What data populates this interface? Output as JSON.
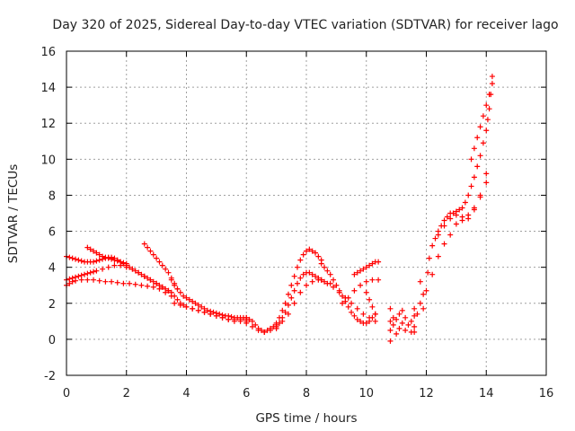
{
  "chart_data": {
    "type": "scatter",
    "title": "Day 320 of 2025, Sidereal Day-to-day VTEC variation (SDTVAR) for receiver lago",
    "xlabel": "GPS time / hours",
    "ylabel": "SDTVAR / TECUs",
    "xlim": [
      0,
      16
    ],
    "ylim": [
      -2,
      16
    ],
    "xticks": [
      0,
      2,
      4,
      6,
      8,
      10,
      12,
      14,
      16
    ],
    "yticks": [
      -2,
      0,
      2,
      4,
      6,
      8,
      10,
      12,
      14,
      16
    ],
    "grid": true,
    "marker": "+",
    "color": "#ff0000",
    "series": [
      {
        "name": "SDTVAR",
        "x": [
          0.0,
          0.1,
          0.2,
          0.3,
          0.4,
          0.5,
          0.6,
          0.7,
          0.8,
          0.9,
          1.0,
          1.1,
          1.2,
          1.3,
          1.4,
          1.5,
          1.6,
          1.7,
          1.8,
          1.9,
          2.0,
          2.1,
          2.2,
          2.3,
          2.4,
          2.5,
          2.6,
          2.7,
          2.8,
          2.9,
          3.0,
          3.1,
          3.2,
          3.3,
          3.4,
          0.0,
          0.1,
          0.2,
          0.3,
          0.4,
          0.5,
          0.6,
          0.7,
          0.8,
          0.9,
          1.0,
          1.2,
          1.4,
          1.6,
          1.8,
          2.0,
          2.2,
          2.4,
          2.6,
          2.8,
          3.0,
          3.2,
          3.4,
          0.0,
          0.1,
          0.2,
          0.3,
          0.5,
          0.7,
          0.9,
          1.1,
          1.3,
          1.5,
          1.7,
          1.9,
          2.1,
          2.3,
          2.5,
          2.7,
          2.9,
          3.1,
          3.3,
          3.5,
          0.7,
          0.8,
          0.9,
          1.0,
          1.1,
          1.2,
          1.3,
          1.4,
          1.5,
          1.6,
          1.7,
          1.8,
          1.9,
          2.0,
          2.6,
          2.7,
          2.8,
          2.9,
          3.0,
          3.1,
          3.2,
          3.3,
          3.4,
          3.5,
          3.6,
          3.7,
          3.5,
          3.6,
          3.7,
          3.8,
          3.9,
          4.0,
          4.1,
          4.2,
          4.3,
          4.4,
          4.5,
          4.6,
          4.7,
          4.8,
          4.9,
          5.0,
          5.1,
          5.2,
          5.3,
          5.4,
          5.5,
          5.6,
          5.7,
          5.8,
          5.9,
          6.0,
          3.5,
          3.6,
          3.7,
          3.8,
          3.9,
          4.0,
          4.2,
          4.4,
          4.6,
          4.8,
          5.0,
          5.2,
          5.4,
          5.6,
          5.8,
          6.0,
          3.6,
          3.8,
          4.0,
          4.2,
          4.4,
          4.6,
          4.8,
          5.0,
          5.2,
          5.4,
          5.6,
          5.8,
          6.0,
          6.0,
          6.1,
          6.2,
          6.3,
          6.4,
          6.5,
          6.6,
          6.7,
          6.8,
          6.9,
          7.0,
          6.0,
          6.2,
          6.4,
          6.6,
          6.8,
          7.0,
          7.0,
          7.1,
          7.2,
          7.3,
          7.4,
          7.5,
          7.6,
          7.7,
          7.8,
          7.9,
          8.0,
          8.1,
          8.2,
          8.3,
          8.4,
          8.5,
          7.0,
          7.1,
          7.2,
          7.3,
          7.4,
          7.5,
          7.6,
          7.7,
          7.8,
          7.9,
          8.0,
          8.1,
          8.2,
          8.3,
          8.4,
          8.5,
          7.2,
          7.4,
          7.6,
          7.8,
          8.0,
          8.2,
          8.4,
          8.6,
          8.8,
          8.5,
          8.6,
          8.7,
          8.8,
          8.9,
          9.0,
          9.1,
          9.2,
          9.3,
          9.4,
          9.5,
          9.6,
          9.7,
          9.8,
          9.9,
          10.0,
          10.1,
          10.2,
          10.3,
          8.5,
          8.7,
          8.9,
          9.1,
          9.3,
          9.5,
          9.7,
          9.9,
          10.1,
          10.3,
          9.2,
          9.4,
          9.6,
          9.8,
          10.0,
          10.2,
          10.4,
          9.6,
          9.7,
          9.8,
          9.9,
          10.0,
          10.1,
          10.2,
          10.3,
          10.4,
          10.0,
          10.1,
          10.2,
          10.3,
          10.8,
          10.8,
          10.8,
          10.8,
          10.9,
          10.9,
          11.0,
          11.0,
          11.1,
          11.1,
          11.2,
          11.2,
          11.3,
          11.3,
          11.4,
          11.5,
          11.5,
          11.6,
          11.6,
          11.6,
          11.6,
          11.7,
          11.8,
          11.8,
          11.9,
          11.9,
          12.0,
          12.05,
          12.1,
          12.2,
          12.3,
          12.4,
          12.5,
          12.6,
          12.7,
          12.8,
          12.9,
          13.0,
          13.1,
          13.2,
          13.3,
          13.4,
          13.5,
          13.6,
          13.7,
          13.8,
          13.9,
          14.0,
          14.05,
          14.1,
          14.15,
          14.2,
          12.2,
          12.4,
          12.6,
          12.8,
          13.0,
          13.2,
          13.4,
          13.6,
          13.8,
          14.0,
          12.4,
          12.6,
          12.8,
          13.0,
          13.2,
          13.4,
          13.6,
          13.8,
          14.0,
          13.5,
          13.6,
          13.7,
          13.8,
          13.9,
          14.0,
          14.1,
          14.2
        ],
        "y": [
          4.6,
          4.55,
          4.5,
          4.45,
          4.4,
          4.35,
          4.3,
          4.3,
          4.3,
          4.3,
          4.35,
          4.4,
          4.45,
          4.5,
          4.55,
          4.55,
          4.5,
          4.4,
          4.3,
          4.2,
          4.1,
          4.0,
          3.9,
          3.8,
          3.7,
          3.6,
          3.5,
          3.4,
          3.3,
          3.2,
          3.1,
          3.0,
          2.9,
          2.8,
          2.7,
          3.3,
          3.35,
          3.4,
          3.45,
          3.5,
          3.55,
          3.6,
          3.65,
          3.7,
          3.75,
          3.8,
          3.9,
          4.0,
          4.1,
          4.1,
          4.0,
          3.9,
          3.7,
          3.5,
          3.3,
          3.1,
          2.9,
          2.7,
          3.0,
          3.1,
          3.2,
          3.25,
          3.3,
          3.3,
          3.3,
          3.25,
          3.2,
          3.2,
          3.15,
          3.1,
          3.1,
          3.05,
          3.0,
          2.95,
          2.9,
          2.8,
          2.6,
          2.4,
          5.1,
          5.0,
          4.9,
          4.8,
          4.7,
          4.6,
          4.55,
          4.5,
          4.45,
          4.4,
          4.35,
          4.3,
          4.25,
          4.2,
          5.3,
          5.1,
          4.9,
          4.7,
          4.5,
          4.3,
          4.1,
          3.9,
          3.7,
          3.4,
          3.1,
          2.8,
          3.3,
          3.0,
          2.8,
          2.6,
          2.4,
          2.3,
          2.2,
          2.1,
          2.0,
          1.9,
          1.8,
          1.7,
          1.6,
          1.55,
          1.5,
          1.45,
          1.4,
          1.35,
          1.3,
          1.3,
          1.25,
          1.2,
          1.2,
          1.2,
          1.2,
          1.2,
          2.6,
          2.4,
          2.2,
          2.0,
          1.9,
          1.8,
          1.7,
          1.6,
          1.5,
          1.4,
          1.3,
          1.2,
          1.1,
          1.1,
          1.1,
          1.1,
          2.0,
          1.9,
          1.8,
          1.7,
          1.6,
          1.5,
          1.4,
          1.3,
          1.2,
          1.1,
          1.0,
          1.0,
          1.0,
          1.2,
          1.1,
          1.0,
          0.8,
          0.6,
          0.5,
          0.4,
          0.5,
          0.6,
          0.7,
          0.8,
          0.9,
          0.7,
          0.5,
          0.4,
          0.5,
          0.6,
          0.9,
          1.2,
          1.6,
          2.0,
          2.5,
          3.0,
          3.5,
          4.0,
          4.4,
          4.7,
          4.9,
          5.0,
          4.9,
          4.8,
          4.6,
          4.4,
          0.7,
          0.9,
          1.2,
          1.5,
          1.9,
          2.3,
          2.7,
          3.1,
          3.4,
          3.6,
          3.7,
          3.7,
          3.6,
          3.5,
          3.4,
          3.3,
          1.0,
          1.4,
          2.0,
          2.6,
          3.0,
          3.2,
          3.3,
          3.2,
          3.1,
          4.2,
          4.0,
          3.8,
          3.6,
          3.3,
          3.0,
          2.7,
          2.4,
          2.1,
          1.8,
          1.5,
          1.3,
          1.1,
          1.0,
          0.9,
          0.9,
          1.0,
          1.2,
          1.4,
          3.3,
          3.1,
          2.9,
          2.6,
          2.3,
          2.0,
          1.7,
          1.4,
          1.2,
          1.0,
          2.0,
          2.3,
          2.7,
          3.0,
          3.2,
          3.3,
          3.3,
          3.6,
          3.7,
          3.8,
          3.9,
          4.0,
          4.1,
          4.2,
          4.3,
          4.3,
          2.6,
          2.2,
          1.8,
          1.4,
          -0.1,
          0.5,
          1.0,
          1.7,
          1.2,
          0.8,
          0.3,
          1.1,
          0.6,
          1.4,
          0.9,
          1.6,
          0.5,
          1.2,
          0.8,
          0.4,
          1.0,
          1.7,
          1.3,
          0.7,
          0.4,
          1.4,
          2.0,
          3.2,
          2.5,
          1.7,
          2.7,
          3.7,
          4.5,
          5.2,
          5.6,
          6.0,
          6.3,
          6.6,
          6.8,
          7.0,
          7.0,
          7.1,
          7.2,
          7.3,
          7.6,
          8.0,
          8.5,
          9.0,
          9.6,
          10.2,
          10.9,
          11.6,
          12.2,
          12.8,
          13.6,
          14.6,
          3.6,
          4.6,
          5.3,
          5.8,
          6.4,
          6.6,
          6.9,
          7.3,
          7.9,
          8.7,
          5.8,
          6.3,
          6.7,
          6.9,
          6.8,
          6.7,
          7.2,
          8.0,
          9.2,
          10.0,
          10.6,
          11.2,
          11.8,
          12.4,
          13.0,
          13.6,
          14.2
        ]
      }
    ]
  }
}
